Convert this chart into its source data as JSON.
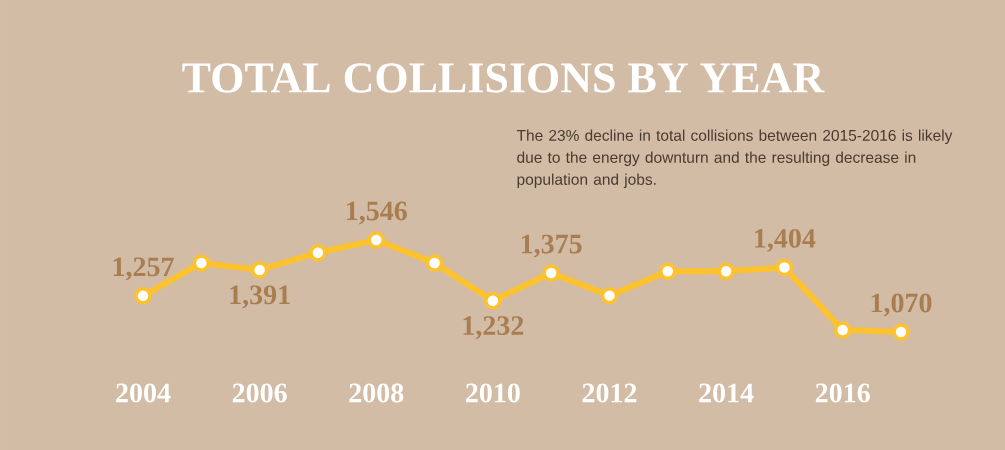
{
  "chart_data": {
    "type": "line",
    "title": "TOTAL COLLISIONS BY YEAR",
    "annotations": [
      "The 23% decline in total collisions between 2015-2016 is likely due to the energy downturn and the resulting decrease in population and jobs."
    ],
    "categories": [
      "2004",
      null,
      "2006",
      null,
      "2008",
      null,
      "2010",
      null,
      "2012",
      null,
      "2014",
      null,
      "2016",
      null
    ],
    "values": [
      1257,
      1427,
      1391,
      1480,
      1546,
      1427,
      1232,
      1375,
      1258,
      1384,
      1384,
      1404,
      1080,
      1070
    ],
    "value_labels": [
      "1,257",
      null,
      "1,391",
      null,
      "1,546",
      null,
      "1,232",
      "1,375",
      null,
      null,
      null,
      "1,404",
      null,
      "1,070"
    ],
    "color": "#fdc22c",
    "marker": "circle"
  }
}
